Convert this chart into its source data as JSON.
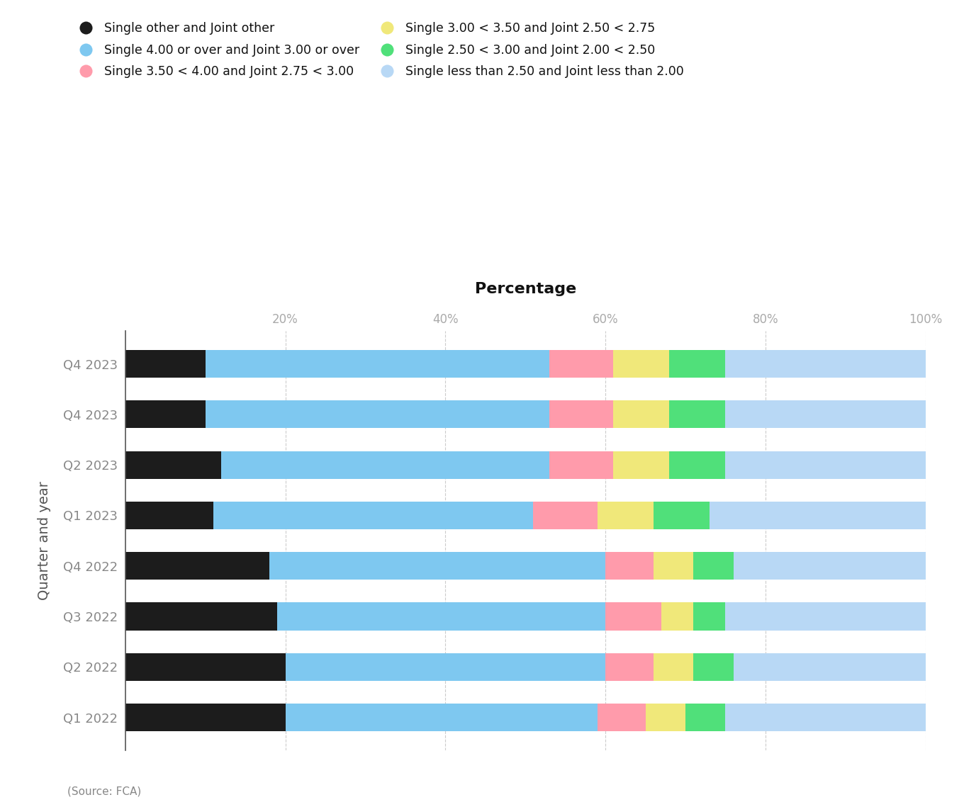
{
  "labels": [
    "Q4 2023",
    "Q4 2023",
    "Q2 2023",
    "Q1 2023",
    "Q4 2022",
    "Q3 2022",
    "Q2 2022",
    "Q1 2022"
  ],
  "segments": {
    "black": [
      10,
      10,
      12,
      11,
      18,
      19,
      20,
      20
    ],
    "blue_dark": [
      43,
      43,
      41,
      40,
      42,
      41,
      40,
      39
    ],
    "pink": [
      8,
      8,
      8,
      8,
      6,
      7,
      6,
      6
    ],
    "yellow": [
      7,
      7,
      7,
      7,
      5,
      4,
      5,
      5
    ],
    "green": [
      7,
      7,
      7,
      7,
      5,
      4,
      5,
      5
    ],
    "blue_light": [
      25,
      25,
      25,
      27,
      24,
      25,
      24,
      25
    ]
  },
  "colors": {
    "black": "#1c1c1c",
    "blue_dark": "#7ec8f0",
    "pink": "#ff9bab",
    "yellow": "#f0e87a",
    "green": "#50e07a",
    "blue_light": "#b8d8f5"
  },
  "seg_order": [
    "black",
    "blue_dark",
    "pink",
    "yellow",
    "green",
    "blue_light"
  ],
  "legend_labels_col1": [
    "Single other and Joint other",
    "Single 3.50 < 4.00 and Joint 2.75 < 3.00",
    "Single 2.50 < 3.00 and Joint 2.00 < 2.50"
  ],
  "legend_labels_col2": [
    "Single 4.00 or over and Joint 3.00 or over",
    "Single 3.00 < 3.50 and Joint 2.50 < 2.75",
    "Single less than 2.50 and Joint less than 2.00"
  ],
  "legend_colors_col1": [
    "#1c1c1c",
    "#ff9bab",
    "#50e07a"
  ],
  "legend_colors_col2": [
    "#7ec8f0",
    "#f0e87a",
    "#b8d8f5"
  ],
  "title": "Percentage",
  "ylabel": "Quarter and year",
  "source_text": "(Source: FCA)",
  "background_color": "#ffffff",
  "xticks": [
    20,
    40,
    60,
    80,
    100
  ]
}
